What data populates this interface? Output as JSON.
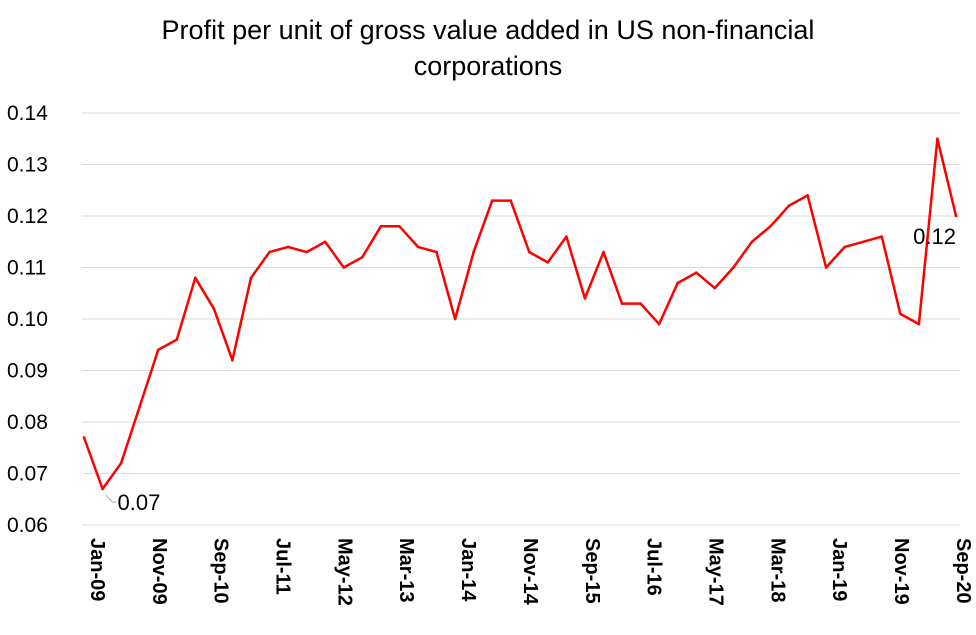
{
  "chart_data": {
    "type": "line",
    "title_lines": [
      "Profit per unit of gross value added in US non-financial",
      "corporations"
    ],
    "xlabel": "",
    "ylabel": "",
    "ylim": [
      0.06,
      0.14
    ],
    "yticks": [
      "0.06",
      "0.07",
      "0.08",
      "0.09",
      "0.10",
      "0.11",
      "0.12",
      "0.13",
      "0.14"
    ],
    "x_tick_labels": [
      "Jan-09",
      "Nov-09",
      "Sep-10",
      "Jul-11",
      "May-12",
      "Mar-13",
      "Jan-14",
      "Nov-14",
      "Sep-15",
      "Jul-16",
      "May-17",
      "Mar-18",
      "Jan-19",
      "Nov-19",
      "Sep-20"
    ],
    "grid": true,
    "legend": "none",
    "line_color": "#ff0000",
    "x": [
      "Jan-09",
      "Apr-09",
      "Jul-09",
      "Oct-09",
      "Jan-10",
      "Apr-10",
      "Jul-10",
      "Oct-10",
      "Jan-11",
      "Apr-11",
      "Jul-11",
      "Oct-11",
      "Jan-12",
      "Apr-12",
      "Jul-12",
      "Oct-12",
      "Jan-13",
      "Apr-13",
      "Jul-13",
      "Oct-13",
      "Jan-14",
      "Apr-14",
      "Jul-14",
      "Oct-14",
      "Jan-15",
      "Apr-15",
      "Jul-15",
      "Oct-15",
      "Jan-16",
      "Apr-16",
      "Jul-16",
      "Oct-16",
      "Jan-17",
      "Apr-17",
      "Jul-17",
      "Oct-17",
      "Jan-18",
      "Apr-18",
      "Jul-18",
      "Oct-18",
      "Jan-19",
      "Apr-19",
      "Jul-19",
      "Oct-19",
      "Jan-20",
      "Apr-20",
      "Jul-20",
      "Oct-20"
    ],
    "series": [
      {
        "values": [
          0.077,
          0.067,
          0.072,
          0.083,
          0.094,
          0.096,
          0.108,
          0.102,
          0.092,
          0.108,
          0.113,
          0.114,
          0.113,
          0.115,
          0.11,
          0.112,
          0.118,
          0.118,
          0.114,
          0.113,
          0.1,
          0.113,
          0.123,
          0.123,
          0.113,
          0.111,
          0.116,
          0.104,
          0.113,
          0.103,
          0.103,
          0.099,
          0.107,
          0.109,
          0.106,
          0.11,
          0.115,
          0.118,
          0.122,
          0.124,
          0.11,
          0.114,
          0.115,
          0.116,
          0.101,
          0.099,
          0.135,
          0.12
        ]
      }
    ],
    "data_labels": [
      {
        "index": 1,
        "text": "0.07"
      },
      {
        "index": 47,
        "text": "0.12"
      }
    ]
  }
}
